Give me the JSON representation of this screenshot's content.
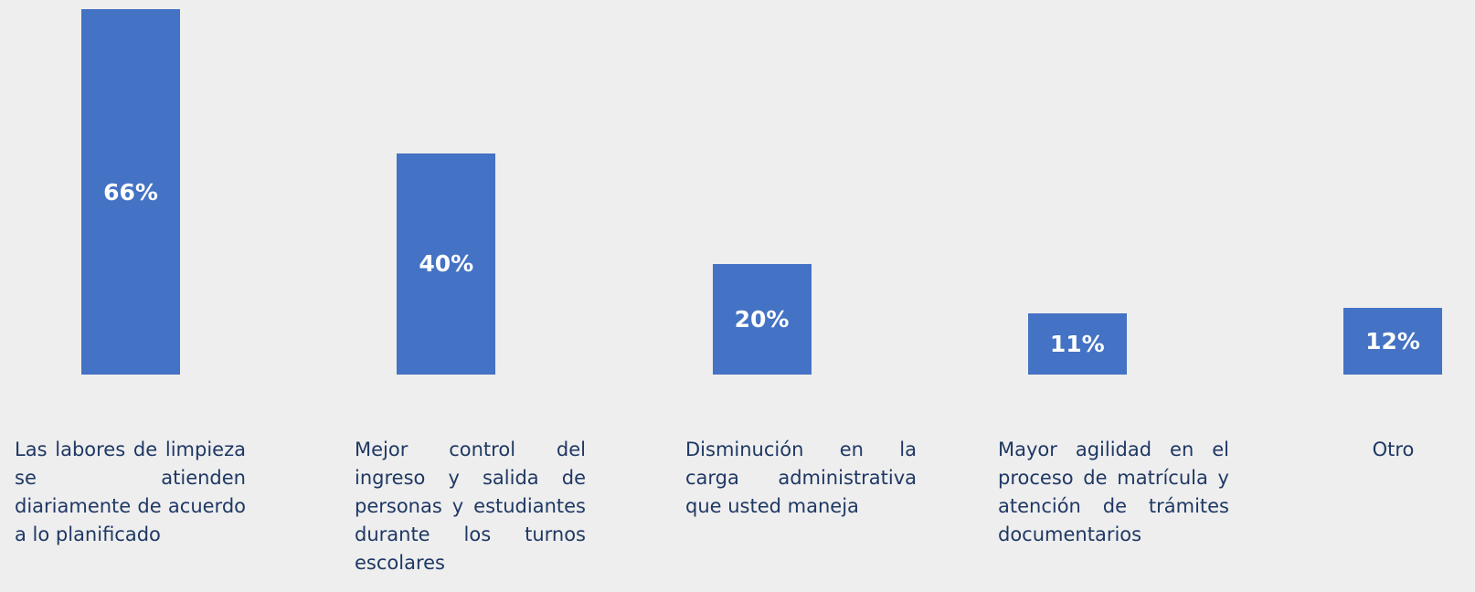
{
  "chart_data": {
    "type": "bar",
    "categories": [
      "Las labores de limpieza se atienden diariamente de acuerdo a lo planificado",
      "Mejor control del ingreso y salida de personas y estudiantes durante los turnos escolares",
      "Disminución en la carga administrativa que usted maneja",
      "Mayor agilidad en el proceso de matrícula y atención de trámites documentarios",
      "Otro"
    ],
    "values": [
      66,
      40,
      20,
      11,
      12
    ],
    "value_labels": [
      "66%",
      "40%",
      "20%",
      "11%",
      "12%"
    ],
    "color": "#4472c4"
  }
}
